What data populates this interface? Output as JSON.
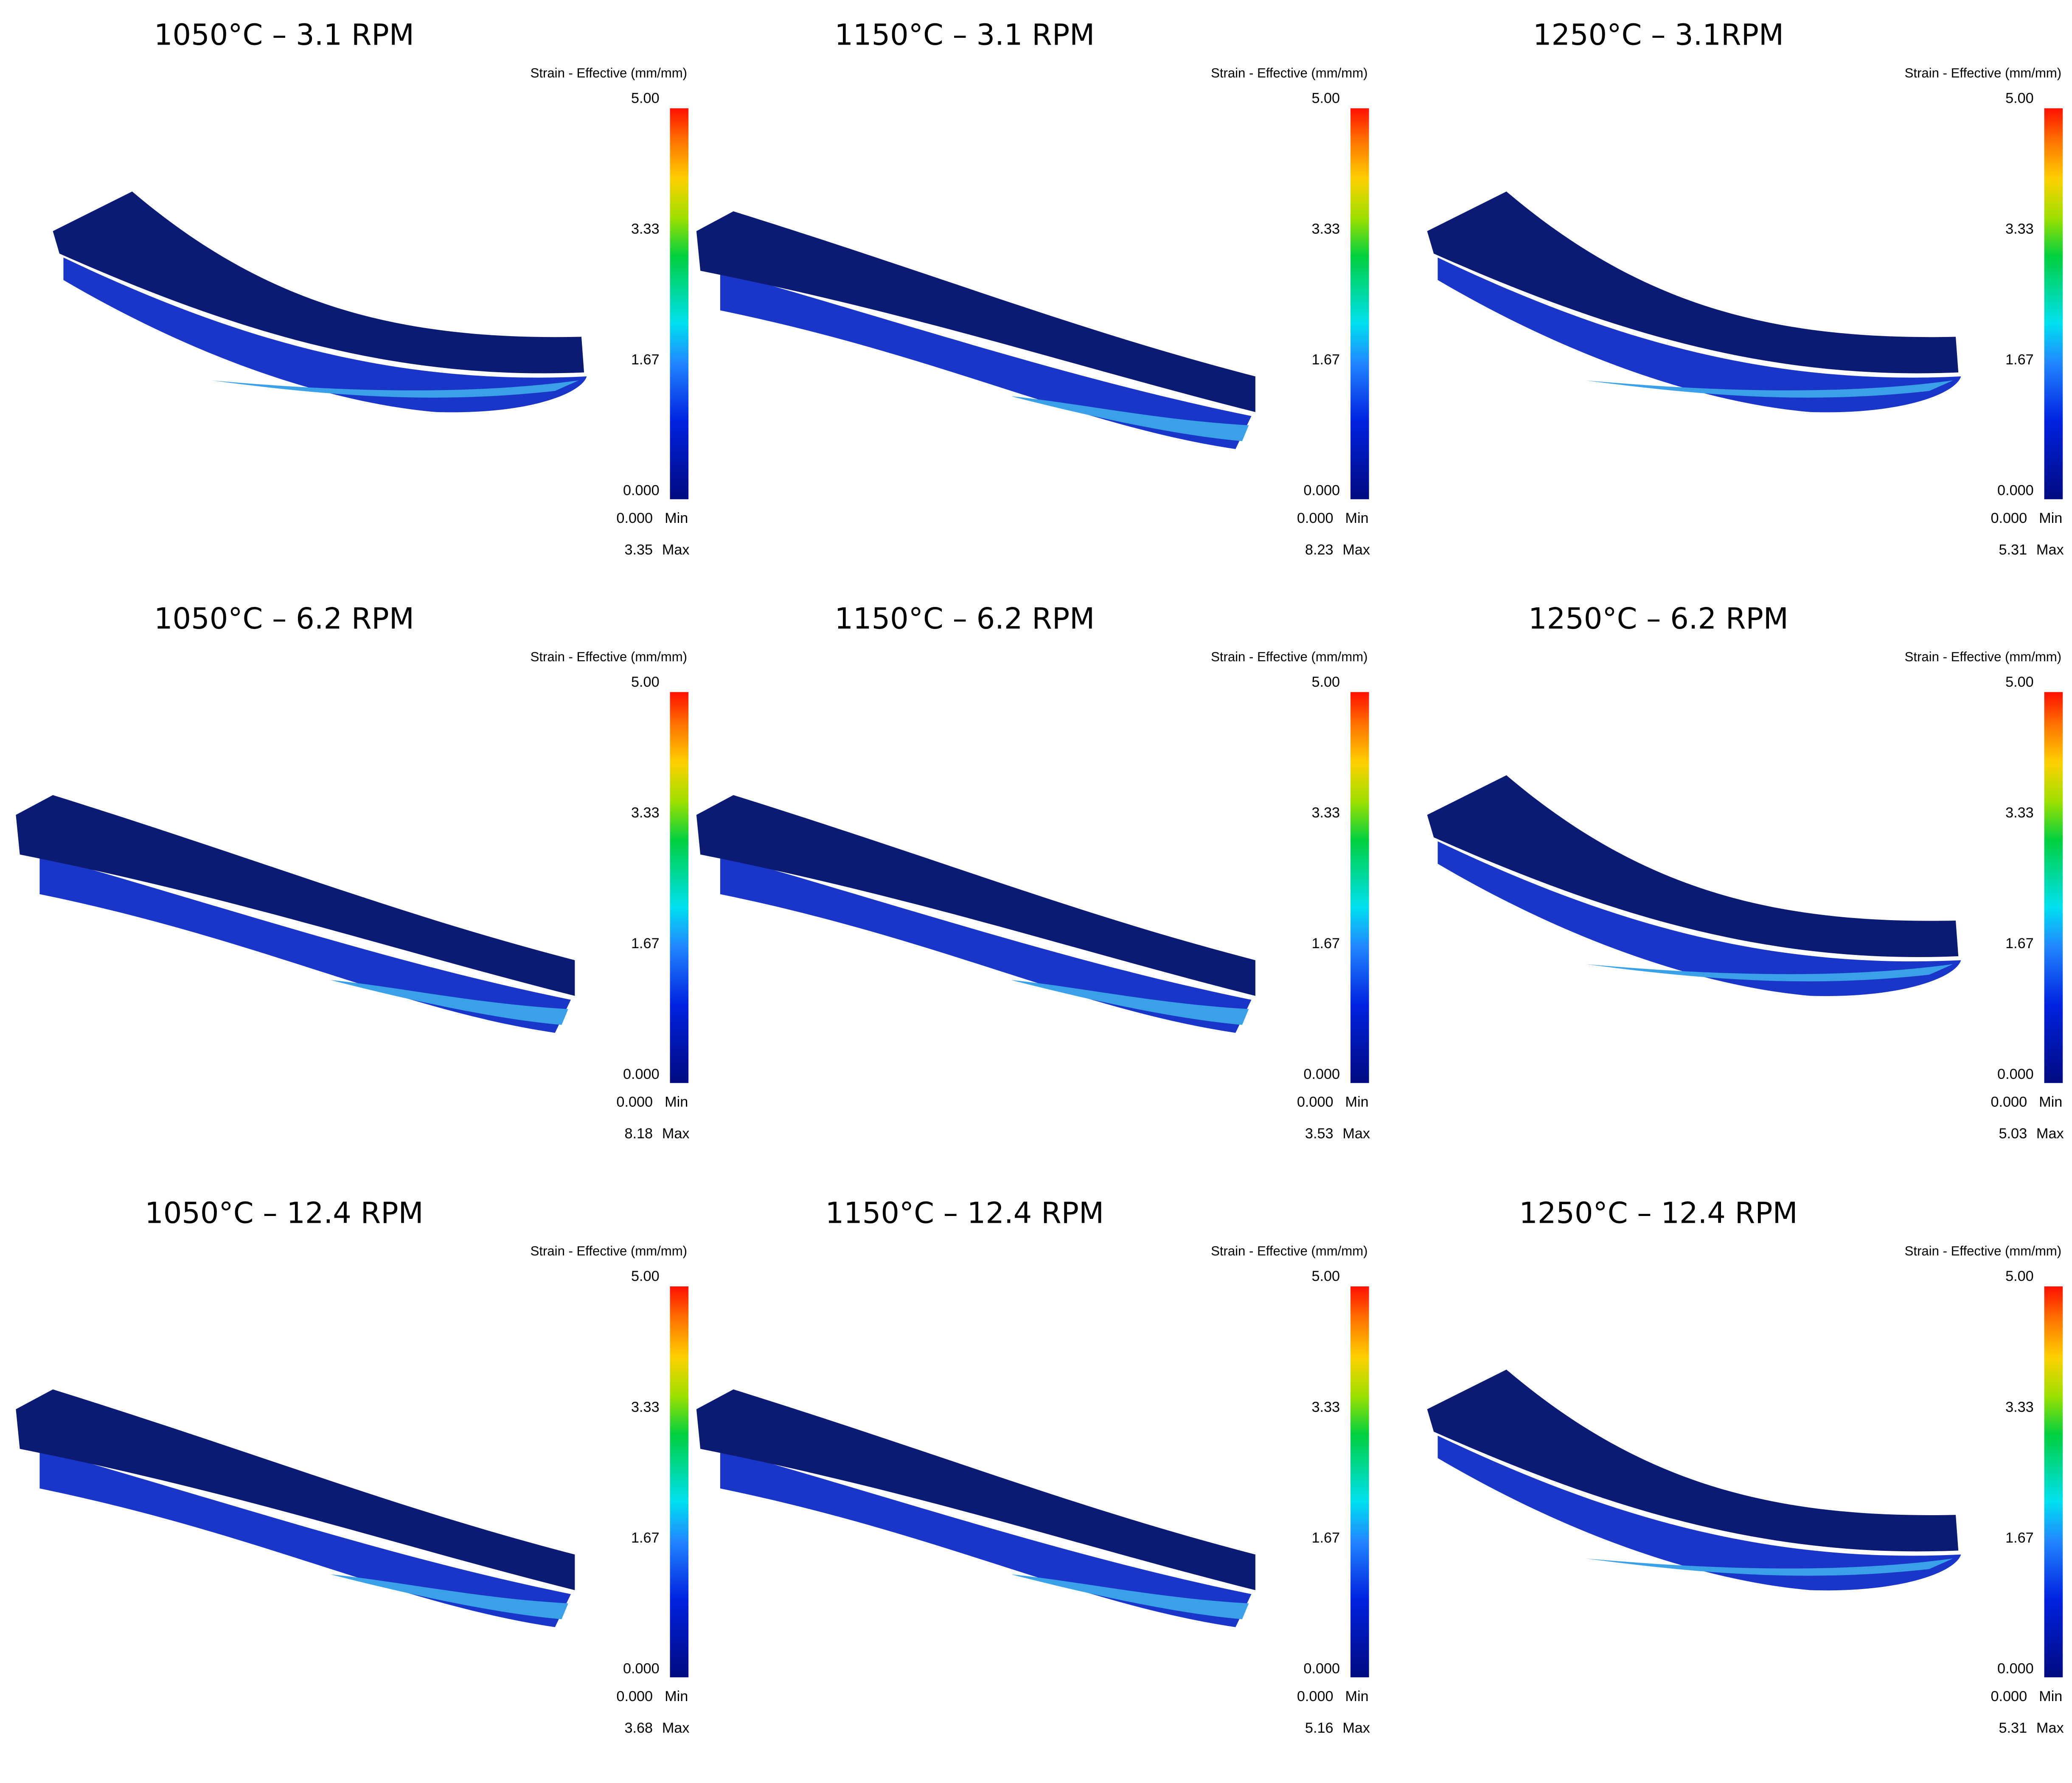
{
  "panels": [
    {
      "title": "1050°C – 3.1 RPM",
      "legend_title": "Strain - Effective (mm/mm)",
      "scale_labels": [
        "5.00",
        "3.33",
        "1.67",
        "0.000"
      ],
      "min_value": "0.000",
      "min_label": "Min",
      "max_value": "3.35",
      "max_label": "Max"
    },
    {
      "title": "1150°C – 3.1 RPM",
      "legend_title": "Strain - Effective (mm/mm)",
      "scale_labels": [
        "5.00",
        "3.33",
        "1.67",
        "0.000"
      ],
      "min_value": "0.000",
      "min_label": "Min",
      "max_value": "8.23",
      "max_label": "Max"
    },
    {
      "title": "1250°C – 3.1RPM",
      "legend_title": "Strain - Effective (mm/mm)",
      "scale_labels": [
        "5.00",
        "3.33",
        "1.67",
        "0.000"
      ],
      "min_value": "0.000",
      "min_label": "Min",
      "max_value": "5.31",
      "max_label": "Max"
    },
    {
      "title": "1050°C – 6.2 RPM",
      "legend_title": "Strain - Effective (mm/mm)",
      "scale_labels": [
        "5.00",
        "3.33",
        "1.67",
        "0.000"
      ],
      "min_value": "0.000",
      "min_label": "Min",
      "max_value": "8.18",
      "max_label": "Max"
    },
    {
      "title": "1150°C – 6.2 RPM",
      "legend_title": "Strain - Effective (mm/mm)",
      "scale_labels": [
        "5.00",
        "3.33",
        "1.67",
        "0.000"
      ],
      "min_value": "0.000",
      "min_label": "Min",
      "max_value": "3.53",
      "max_label": "Max"
    },
    {
      "title": "1250°C – 6.2 RPM",
      "legend_title": "Strain - Effective (mm/mm)",
      "scale_labels": [
        "5.00",
        "3.33",
        "1.67",
        "0.000"
      ],
      "min_value": "0.000",
      "min_label": "Min",
      "max_value": "5.03",
      "max_label": "Max"
    },
    {
      "title": "1050°C – 12.4 RPM",
      "legend_title": "Strain - Effective (mm/mm)",
      "scale_labels": [
        "5.00",
        "3.33",
        "1.67",
        "0.000"
      ],
      "min_value": "0.000",
      "min_label": "Min",
      "max_value": "3.68",
      "max_label": "Max"
    },
    {
      "title": "1150°C – 12.4 RPM",
      "legend_title": "Strain - Effective (mm/mm)",
      "scale_labels": [
        "5.00",
        "3.33",
        "1.67",
        "0.000"
      ],
      "min_value": "0.000",
      "min_label": "Min",
      "max_value": "5.16",
      "max_label": "Max"
    },
    {
      "title": "1250°C – 12.4 RPM",
      "legend_title": "Strain - Effective (mm/mm)",
      "scale_labels": [
        "5.00",
        "3.33",
        "1.67",
        "0.000"
      ],
      "min_value": "0.000",
      "min_label": "Min",
      "max_value": "5.31",
      "max_label": "Max"
    }
  ]
}
